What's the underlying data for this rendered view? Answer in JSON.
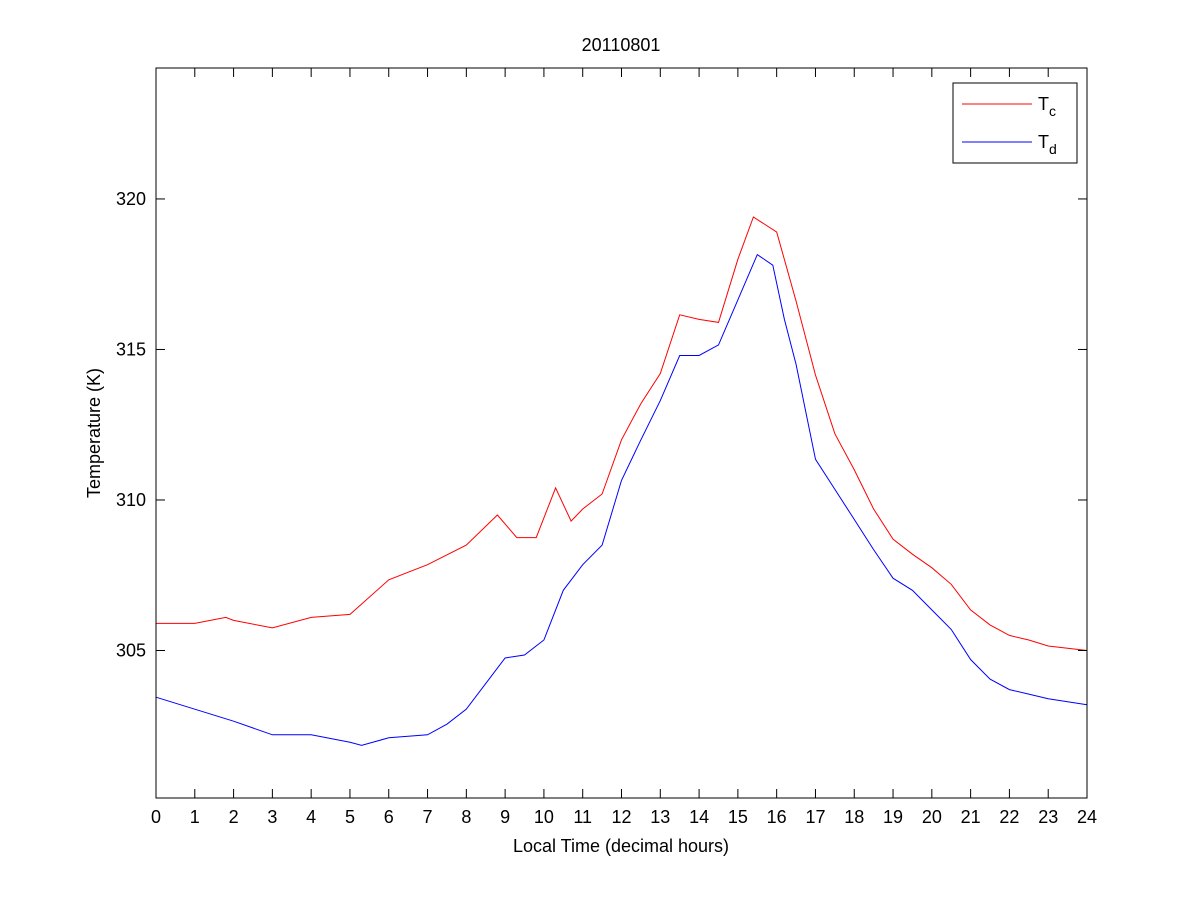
{
  "chart_data": {
    "type": "line",
    "title": "20110801",
    "xlabel": "Local Time (decimal hours)",
    "ylabel": "Temperature (K)",
    "xlim": [
      0,
      24
    ],
    "ylim": [
      300.1,
      324.35
    ],
    "xticks": [
      0,
      1,
      2,
      3,
      4,
      5,
      6,
      7,
      8,
      9,
      10,
      11,
      12,
      13,
      14,
      15,
      16,
      17,
      18,
      19,
      20,
      21,
      22,
      23,
      24
    ],
    "yticks": [
      305,
      310,
      315,
      320
    ],
    "grid": false,
    "legend_placement": "top-right",
    "series": [
      {
        "name": "T",
        "subscript": "c",
        "color": "#ff0000",
        "x": [
          0,
          1,
          1.8,
          2,
          3,
          4,
          5,
          6,
          7,
          8,
          8.8,
          9.3,
          9.8,
          10.3,
          10.7,
          11,
          11.5,
          12,
          12.5,
          13,
          13.5,
          14,
          14.5,
          15,
          15.4,
          16,
          16.5,
          17,
          17.5,
          18,
          18.5,
          19,
          19.5,
          20,
          20.5,
          21,
          21.5,
          22,
          22.5,
          23,
          24
        ],
        "y": [
          305.9,
          305.9,
          306.1,
          306.0,
          305.75,
          306.1,
          306.2,
          307.35,
          307.85,
          308.5,
          309.5,
          308.75,
          308.75,
          310.4,
          309.3,
          309.7,
          310.2,
          312.0,
          313.2,
          314.2,
          316.15,
          316.0,
          315.9,
          318.0,
          319.4,
          318.9,
          316.6,
          314.15,
          312.2,
          311.0,
          309.7,
          308.7,
          308.2,
          307.75,
          307.2,
          306.35,
          305.85,
          305.5,
          305.35,
          305.15,
          305.0
        ]
      },
      {
        "name": "T",
        "subscript": "d",
        "color": "#0000ff",
        "x": [
          0,
          1,
          2,
          3,
          4,
          5,
          5.3,
          6,
          7,
          7.5,
          8,
          8.5,
          9,
          9.5,
          10,
          10.5,
          11,
          11.5,
          12,
          12.5,
          13,
          13.5,
          14,
          14.5,
          15,
          15.5,
          15.9,
          16.2,
          16.5,
          17,
          17.5,
          18,
          18.5,
          19,
          19.5,
          20,
          20.5,
          21,
          21.5,
          22,
          22.5,
          23,
          24
        ],
        "y": [
          303.45,
          303.05,
          302.65,
          302.2,
          302.2,
          301.95,
          301.85,
          302.1,
          302.2,
          302.55,
          303.05,
          303.9,
          304.75,
          304.85,
          305.35,
          307.0,
          307.85,
          308.5,
          310.65,
          312.0,
          313.3,
          314.8,
          314.8,
          315.15,
          316.65,
          318.15,
          317.8,
          316.0,
          314.5,
          311.35,
          310.35,
          309.35,
          308.35,
          307.4,
          307.0,
          306.35,
          305.7,
          304.7,
          304.05,
          303.7,
          303.55,
          303.4,
          303.2
        ]
      }
    ]
  }
}
